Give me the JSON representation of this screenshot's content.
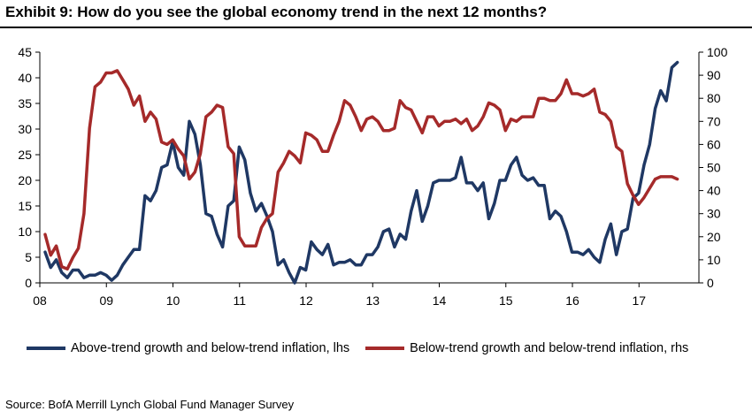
{
  "title": "Exhibit 9: How do you see the global economy trend in the next 12 months?",
  "source": "Source: BofA Merrill Lynch Global Fund Manager Survey",
  "chart_data": {
    "type": "line",
    "x_start": 2008.08,
    "x_step": 0.0833,
    "xlim": [
      2008.0,
      2017.9
    ],
    "x_ticks": [
      2008,
      2009,
      2010,
      2011,
      2012,
      2013,
      2014,
      2015,
      2016,
      2017
    ],
    "x_tick_labels": [
      "08",
      "09",
      "10",
      "11",
      "12",
      "13",
      "14",
      "15",
      "16",
      "17"
    ],
    "y_left_lim": [
      0,
      45
    ],
    "y_left_ticks": [
      "0",
      "5",
      "10",
      "15",
      "20",
      "25",
      "30",
      "35",
      "40",
      "45"
    ],
    "y_right_lim": [
      0,
      100
    ],
    "y_right_ticks": [
      "0",
      "10",
      "20",
      "30",
      "40",
      "50",
      "60",
      "70",
      "80",
      "90",
      "100"
    ],
    "series": [
      {
        "name": "Above-trend growth and below-trend inflation, lhs",
        "axis": "left",
        "color": "#1f3864",
        "values": [
          6,
          3,
          4.5,
          2,
          1,
          2.5,
          2.5,
          1,
          1.5,
          1.5,
          2,
          1.5,
          0.5,
          1.5,
          3.5,
          5,
          6.5,
          6.5,
          17,
          16,
          18,
          22.5,
          23,
          27.5,
          22.5,
          21,
          31.5,
          29,
          23,
          13.5,
          13,
          9.5,
          7,
          15,
          16,
          26.5,
          24,
          17.5,
          14,
          15.5,
          13,
          10,
          3.5,
          4.5,
          2,
          0,
          3,
          2.5,
          8,
          6.5,
          5.5,
          7.5,
          3.5,
          4,
          4,
          4.5,
          3.5,
          3.5,
          5.5,
          5.5,
          7,
          10,
          10.5,
          7,
          9.5,
          8.5,
          14,
          18,
          12,
          15,
          19.5,
          20,
          20,
          20,
          20.5,
          24.5,
          19.5,
          19.5,
          18,
          19.5,
          12.5,
          15.5,
          20,
          20,
          23,
          24.5,
          21,
          20,
          20.5,
          19,
          19,
          12.5,
          14,
          13,
          10,
          6,
          6,
          5.5,
          6.5,
          5,
          4,
          8.5,
          11.5,
          5.5,
          10,
          10.5,
          16.5,
          17.5,
          23,
          27,
          34,
          37.5,
          35.5,
          42,
          43
        ]
      },
      {
        "name": "Below-trend growth and below-trend inflation, rhs",
        "axis": "right",
        "color": "#a52a2a",
        "values": [
          21,
          12,
          16,
          7,
          6,
          11,
          15,
          30,
          67,
          85,
          87,
          91,
          91,
          92,
          88,
          84,
          77,
          81,
          70,
          74,
          71,
          61,
          60,
          62,
          58,
          55,
          45,
          48,
          56,
          72,
          74,
          77,
          76,
          59,
          56,
          20,
          16,
          16,
          16,
          24,
          28,
          30,
          48,
          52,
          57,
          55,
          52,
          65,
          64,
          62,
          57,
          57,
          64,
          70,
          79,
          77,
          72,
          66,
          71,
          72,
          70,
          66,
          66,
          67,
          79,
          76,
          75,
          70,
          65,
          72,
          72,
          68,
          70,
          70,
          71,
          69,
          71,
          66,
          68,
          72,
          78,
          77,
          75,
          66,
          71,
          70,
          72,
          72,
          72,
          80,
          80,
          79,
          79,
          82,
          88,
          82,
          82,
          81,
          82,
          84,
          74,
          73,
          70,
          59,
          57,
          43,
          38,
          34,
          37,
          41,
          45,
          46,
          46,
          46,
          45
        ]
      }
    ]
  }
}
